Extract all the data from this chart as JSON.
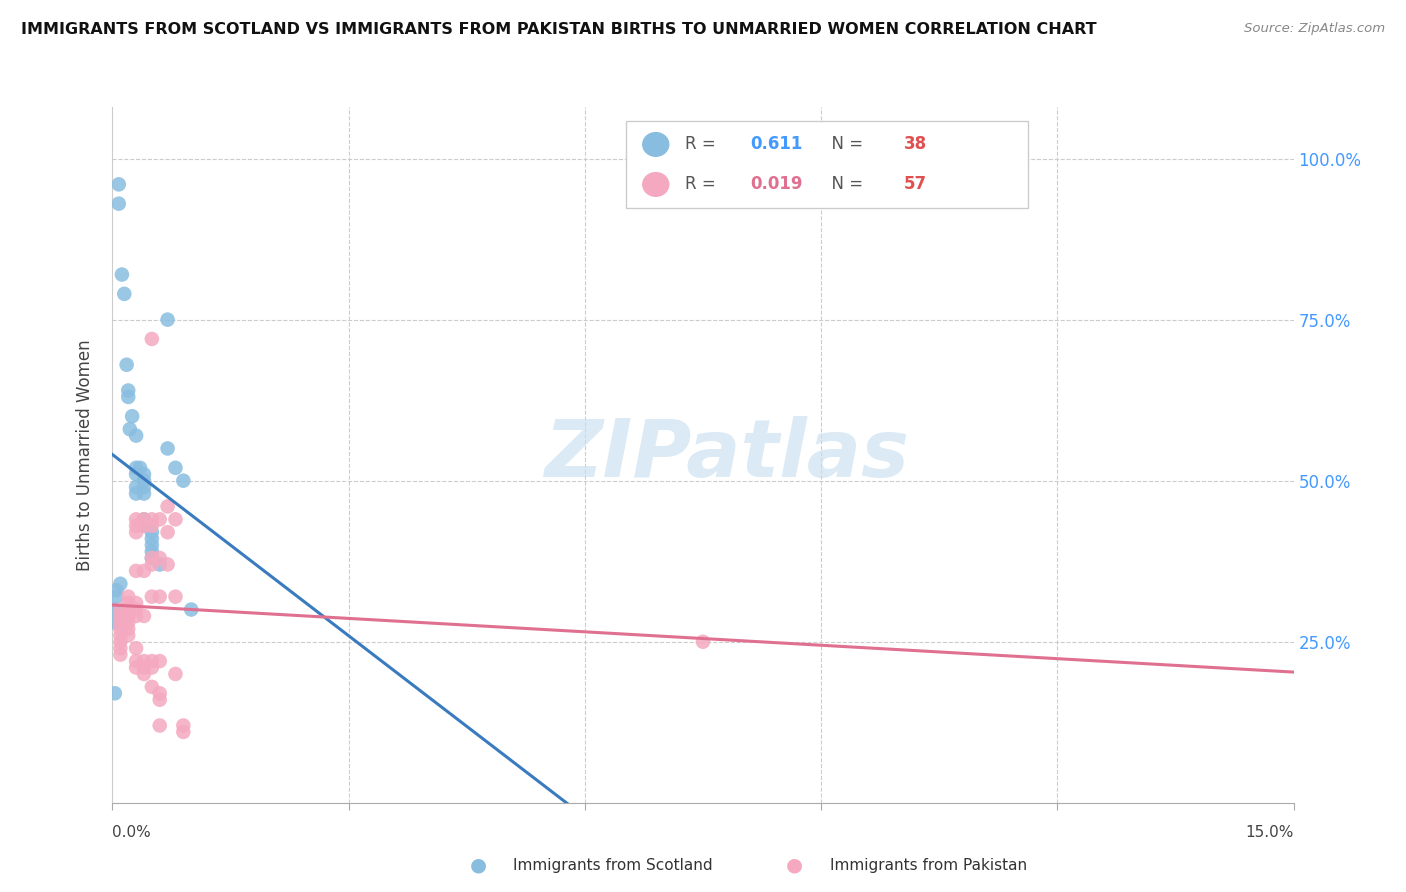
{
  "title": "IMMIGRANTS FROM SCOTLAND VS IMMIGRANTS FROM PAKISTAN BIRTHS TO UNMARRIED WOMEN CORRELATION CHART",
  "source": "Source: ZipAtlas.com",
  "ylabel": "Births to Unmarried Women",
  "yticks_labels": [
    "100.0%",
    "75.0%",
    "50.0%",
    "25.0%"
  ],
  "ytick_vals": [
    1.0,
    0.75,
    0.5,
    0.25
  ],
  "xlim": [
    0.0,
    0.15
  ],
  "ylim": [
    0.0,
    1.08
  ],
  "xtick_positions": [
    0.0,
    0.03,
    0.06,
    0.09,
    0.12,
    0.15
  ],
  "scotland_color": "#89bde0",
  "pakistan_color": "#f4a9c0",
  "scotland_line_color": "#3a7bbf",
  "pakistan_line_color": "#e07090",
  "watermark_text": "ZIPatlas",
  "legend_r1": "0.611",
  "legend_n1": "38",
  "legend_r2": "0.019",
  "legend_n2": "57",
  "scotland_points": [
    [
      0.0008,
      0.96
    ],
    [
      0.0008,
      0.93
    ],
    [
      0.0012,
      0.82
    ],
    [
      0.0015,
      0.79
    ],
    [
      0.0018,
      0.68
    ],
    [
      0.002,
      0.64
    ],
    [
      0.002,
      0.63
    ],
    [
      0.0025,
      0.6
    ],
    [
      0.0022,
      0.58
    ],
    [
      0.003,
      0.57
    ],
    [
      0.003,
      0.52
    ],
    [
      0.003,
      0.51
    ],
    [
      0.003,
      0.49
    ],
    [
      0.003,
      0.48
    ],
    [
      0.0035,
      0.52
    ],
    [
      0.004,
      0.51
    ],
    [
      0.004,
      0.5
    ],
    [
      0.004,
      0.49
    ],
    [
      0.004,
      0.48
    ],
    [
      0.004,
      0.44
    ],
    [
      0.004,
      0.43
    ],
    [
      0.005,
      0.42
    ],
    [
      0.005,
      0.41
    ],
    [
      0.005,
      0.4
    ],
    [
      0.005,
      0.39
    ],
    [
      0.005,
      0.38
    ],
    [
      0.006,
      0.37
    ],
    [
      0.007,
      0.75
    ],
    [
      0.007,
      0.55
    ],
    [
      0.008,
      0.52
    ],
    [
      0.009,
      0.5
    ],
    [
      0.01,
      0.3
    ],
    [
      0.001,
      0.34
    ],
    [
      0.0005,
      0.33
    ],
    [
      0.0005,
      0.32
    ],
    [
      0.0003,
      0.28
    ],
    [
      0.0003,
      0.3
    ],
    [
      0.0003,
      0.17
    ]
  ],
  "pakistan_points": [
    [
      0.001,
      0.3
    ],
    [
      0.001,
      0.29
    ],
    [
      0.001,
      0.28
    ],
    [
      0.001,
      0.27
    ],
    [
      0.001,
      0.26
    ],
    [
      0.001,
      0.25
    ],
    [
      0.001,
      0.24
    ],
    [
      0.001,
      0.23
    ],
    [
      0.002,
      0.32
    ],
    [
      0.002,
      0.31
    ],
    [
      0.002,
      0.3
    ],
    [
      0.002,
      0.29
    ],
    [
      0.002,
      0.28
    ],
    [
      0.002,
      0.27
    ],
    [
      0.002,
      0.26
    ],
    [
      0.003,
      0.44
    ],
    [
      0.003,
      0.43
    ],
    [
      0.003,
      0.42
    ],
    [
      0.003,
      0.36
    ],
    [
      0.003,
      0.31
    ],
    [
      0.003,
      0.3
    ],
    [
      0.003,
      0.29
    ],
    [
      0.003,
      0.24
    ],
    [
      0.003,
      0.22
    ],
    [
      0.003,
      0.21
    ],
    [
      0.004,
      0.44
    ],
    [
      0.004,
      0.43
    ],
    [
      0.004,
      0.36
    ],
    [
      0.004,
      0.29
    ],
    [
      0.004,
      0.22
    ],
    [
      0.004,
      0.21
    ],
    [
      0.004,
      0.2
    ],
    [
      0.005,
      0.72
    ],
    [
      0.005,
      0.44
    ],
    [
      0.005,
      0.43
    ],
    [
      0.005,
      0.38
    ],
    [
      0.005,
      0.37
    ],
    [
      0.005,
      0.32
    ],
    [
      0.005,
      0.22
    ],
    [
      0.005,
      0.21
    ],
    [
      0.005,
      0.18
    ],
    [
      0.006,
      0.44
    ],
    [
      0.006,
      0.38
    ],
    [
      0.006,
      0.32
    ],
    [
      0.006,
      0.22
    ],
    [
      0.006,
      0.17
    ],
    [
      0.006,
      0.16
    ],
    [
      0.006,
      0.12
    ],
    [
      0.007,
      0.46
    ],
    [
      0.007,
      0.42
    ],
    [
      0.007,
      0.37
    ],
    [
      0.008,
      0.44
    ],
    [
      0.008,
      0.32
    ],
    [
      0.008,
      0.2
    ],
    [
      0.009,
      0.12
    ],
    [
      0.009,
      0.11
    ],
    [
      0.075,
      0.25
    ]
  ]
}
